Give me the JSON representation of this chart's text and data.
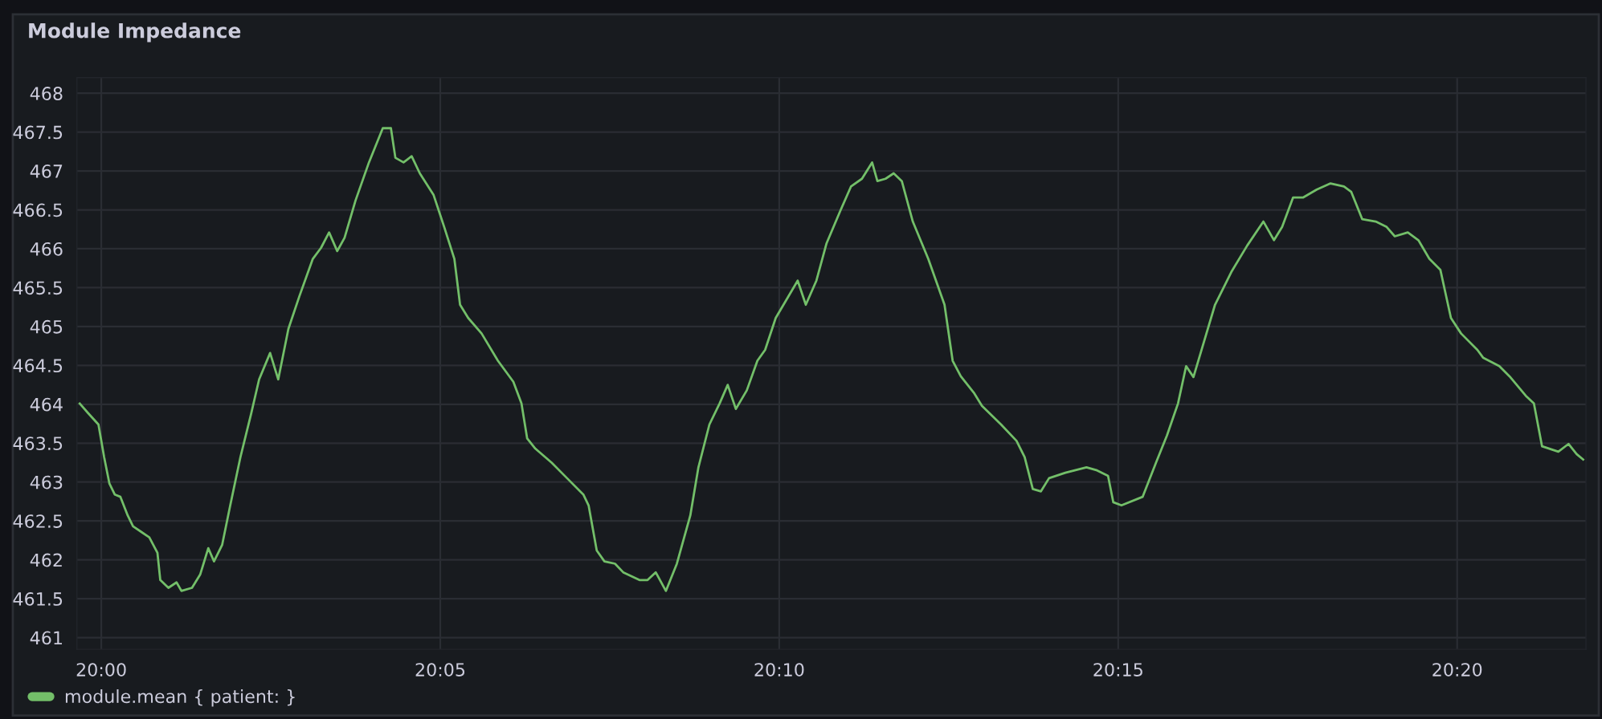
{
  "chart_data": {
    "type": "line",
    "title": "Module Impedance",
    "x": [
      19.9947,
      19.9967,
      19.9993,
      20.0007,
      20.002,
      20.0033,
      20.0047,
      20.0065,
      20.0078,
      20.0098,
      20.0118,
      20.0138,
      20.0145,
      20.0165,
      20.0185,
      20.0197,
      20.0223,
      20.0243,
      20.0263,
      20.0277,
      20.0297,
      20.0317,
      20.0342,
      20.0368,
      20.0388,
      20.0415,
      20.0435,
      20.046,
      20.0487,
      20.052,
      20.054,
      20.056,
      20.058,
      20.0598,
      20.0625,
      20.0658,
      20.0692,
      20.0712,
      20.0723,
      20.0743,
      20.0763,
      20.0783,
      20.0817,
      20.0843,
      20.0868,
      20.0882,
      20.0902,
      20.0935,
      20.0975,
      20.1013,
      20.1033,
      20.1047,
      20.1067,
      20.1107,
      20.1145,
      20.1185,
      20.1198,
      20.1218,
      20.1237,
      20.1263,
      20.1283,
      20.1323,
      20.1343,
      20.1363,
      20.1388,
      20.1415,
      20.1448,
      20.1468,
      20.1495,
      20.152,
      20.154,
      20.156,
      20.1587,
      20.1613,
      20.1632,
      20.1658,
      20.1685,
      20.1712,
      20.1732,
      20.1758,
      20.1783,
      20.1817,
      20.1843,
      20.187,
      20.1895,
      20.1908,
      20.1928,
      20.1948,
      20.1968,
      20.1995,
      20.2033,
      20.2073,
      20.2093,
      20.2113,
      20.2145,
      20.2165,
      20.2212,
      20.225,
      20.227,
      20.229,
      20.231,
      20.233,
      20.237,
      20.2422,
      20.2448,
      20.2475,
      20.2488,
      20.2508,
      20.256,
      20.2593,
      20.262,
      20.2647,
      20.2667,
      20.2685,
      20.2705,
      20.2738,
      20.2778,
      20.2817,
      20.2857,
      20.2883,
      20.2903,
      20.293,
      20.2955,
      20.2988,
      20.3022,
      20.3055,
      20.3073,
      20.31,
      20.3133,
      20.316,
      20.318,
      20.3212,
      20.3238,
      20.3265,
      20.3292,
      20.3318,
      20.3343,
      20.3383,
      20.3397,
      20.3437,
      20.3462,
      20.3502,
      20.3522,
      20.3542,
      20.3582,
      20.3607,
      20.3627,
      20.3643
    ],
    "series": [
      {
        "name": "module.mean { patient: }",
        "color": "#73bf69",
        "values": [
          464.01,
          463.89,
          463.74,
          463.32,
          462.98,
          462.84,
          462.81,
          462.57,
          462.43,
          462.36,
          462.29,
          462.09,
          461.74,
          461.64,
          461.71,
          461.6,
          461.64,
          461.81,
          462.15,
          461.98,
          462.19,
          462.7,
          463.32,
          463.87,
          464.32,
          464.66,
          464.32,
          464.97,
          465.39,
          465.87,
          466.01,
          466.21,
          465.97,
          466.14,
          466.62,
          467.11,
          467.55,
          467.55,
          467.17,
          467.11,
          467.19,
          466.97,
          466.69,
          466.28,
          465.87,
          465.28,
          465.11,
          464.91,
          464.56,
          464.29,
          464.01,
          463.56,
          463.43,
          463.25,
          463.05,
          462.84,
          462.7,
          462.12,
          461.98,
          461.95,
          461.84,
          461.74,
          461.74,
          461.84,
          461.6,
          461.95,
          462.57,
          463.19,
          463.74,
          464.01,
          464.25,
          463.94,
          464.18,
          464.56,
          464.7,
          465.11,
          465.35,
          465.59,
          465.28,
          465.59,
          466.07,
          466.49,
          466.8,
          466.9,
          467.11,
          466.87,
          466.9,
          466.97,
          466.87,
          466.35,
          465.87,
          465.28,
          464.56,
          464.36,
          464.15,
          463.98,
          463.74,
          463.53,
          463.32,
          462.91,
          462.88,
          463.05,
          463.12,
          463.19,
          463.15,
          463.08,
          462.74,
          462.7,
          462.81,
          463.25,
          463.6,
          464.01,
          464.49,
          464.35,
          464.7,
          465.28,
          465.7,
          466.04,
          466.35,
          466.11,
          466.28,
          466.66,
          466.66,
          466.76,
          466.84,
          466.8,
          466.73,
          466.38,
          466.35,
          466.28,
          466.16,
          466.21,
          466.11,
          465.87,
          465.73,
          465.11,
          464.91,
          464.7,
          464.6,
          464.49,
          464.36,
          464.11,
          464.01,
          463.46,
          463.39,
          463.49,
          463.36,
          463.29
        ]
      }
    ],
    "xlim": [
      19.994,
      20.365
    ],
    "xticks": [
      {
        "value": 20,
        "label": "20:00"
      },
      {
        "value": 20.0833333,
        "label": "20:05"
      },
      {
        "value": 20.1666667,
        "label": "20:10"
      },
      {
        "value": 20.25,
        "label": "20:15"
      },
      {
        "value": 20.3333333,
        "label": "20:20"
      }
    ],
    "ylim": [
      460.85,
      468.2
    ],
    "yticks": [
      461,
      461.5,
      462,
      462.5,
      463,
      463.5,
      464,
      464.5,
      465,
      465.5,
      466,
      466.5,
      467,
      467.5,
      468
    ],
    "grid": true,
    "legend": "bottom"
  }
}
